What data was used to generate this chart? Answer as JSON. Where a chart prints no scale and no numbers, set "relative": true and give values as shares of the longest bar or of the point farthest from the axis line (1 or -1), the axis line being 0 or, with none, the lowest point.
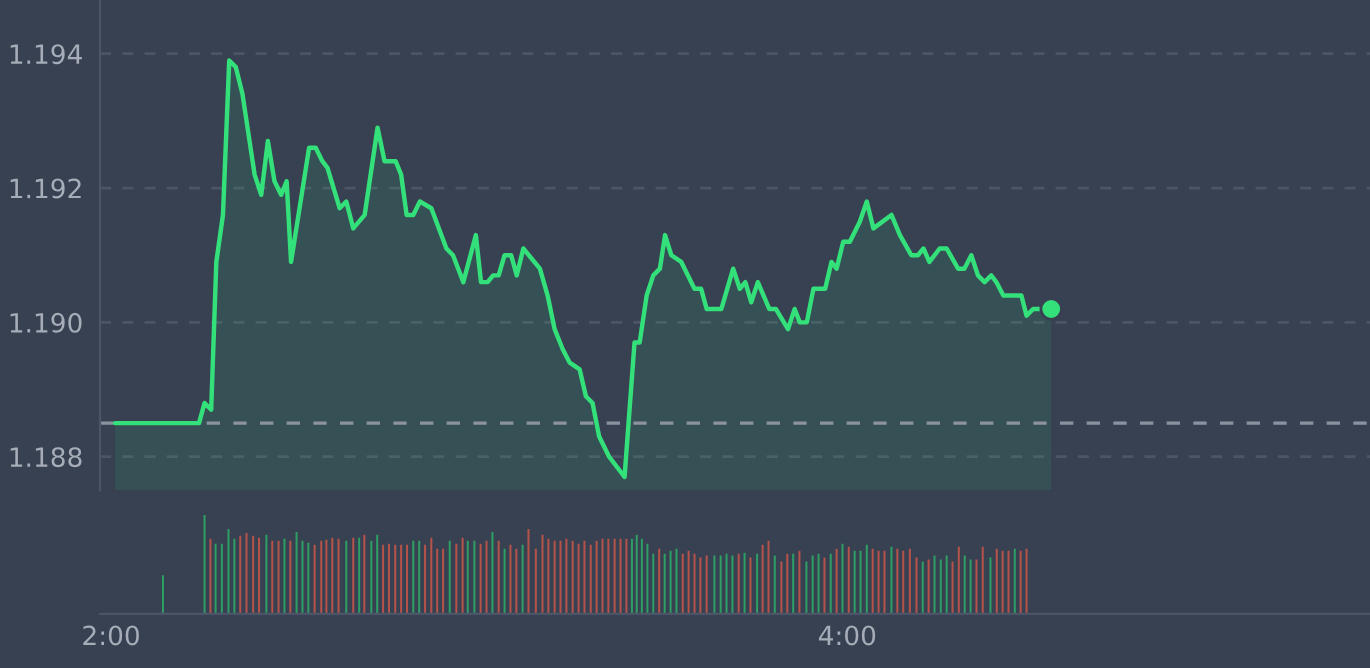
{
  "chart_data": [
    {
      "type": "area",
      "xlim": [
        1.97,
        5.42
      ],
      "ylim": [
        1.1875,
        1.1948
      ],
      "yticks": [
        1.188,
        {
          "value": 1.19,
          "label": "1.190"
        },
        1.192,
        1.194
      ],
      "tick_labels": "y",
      "grid": "y",
      "ref_lines": [
        {
          "axis": "y",
          "value": 1.1885,
          "color": "#8b93a1",
          "line_style": "dashed"
        }
      ],
      "series": [
        {
          "color": "#33e07a",
          "x": [
            2.011,
            2.239,
            2.254,
            2.272,
            2.286,
            2.304,
            2.321,
            2.339,
            2.357,
            2.39,
            2.408,
            2.426,
            2.444,
            2.462,
            2.477,
            2.489,
            2.538,
            2.556,
            2.574,
            2.588,
            2.621,
            2.639,
            2.658,
            2.689,
            2.724,
            2.743,
            2.773,
            2.788,
            2.803,
            2.821,
            2.839,
            2.87,
            2.911,
            2.929,
            2.957,
            2.991,
            3.005,
            3.023,
            3.038,
            3.053,
            3.069,
            3.087,
            3.102,
            3.12,
            3.165,
            3.186,
            3.205,
            3.227,
            3.246,
            3.273,
            3.29,
            3.308,
            3.326,
            3.353,
            3.395,
            3.422,
            3.436,
            3.455,
            3.473,
            3.491,
            3.505,
            3.522,
            3.549,
            3.585,
            3.603,
            3.618,
            3.64,
            3.658,
            3.69,
            3.708,
            3.723,
            3.739,
            3.757,
            3.788,
            3.806,
            3.839,
            3.857,
            3.871,
            3.89,
            3.908,
            3.926,
            3.94,
            3.957,
            3.971,
            3.989,
            4.007,
            4.034,
            4.053,
            4.071,
            4.12,
            4.143,
            4.174,
            4.192,
            4.207,
            4.223,
            4.251,
            4.27,
            4.301,
            4.318,
            4.337,
            4.355,
            4.373,
            4.391,
            4.405,
            4.424,
            4.442,
            4.46,
            4.473,
            4.487,
            4.505,
            4.554
          ],
          "values": [
            1.1885,
            1.1885,
            1.1888,
            1.1887,
            1.1909,
            1.1916,
            1.1939,
            1.1938,
            1.1934,
            1.1922,
            1.1919,
            1.1927,
            1.1921,
            1.1919,
            1.1921,
            1.1909,
            1.1926,
            1.1926,
            1.1924,
            1.1923,
            1.1917,
            1.1918,
            1.1914,
            1.1916,
            1.1929,
            1.1924,
            1.1924,
            1.1922,
            1.1916,
            1.1916,
            1.1918,
            1.1917,
            1.1911,
            1.191,
            1.1906,
            1.1913,
            1.1906,
            1.1906,
            1.1907,
            1.1907,
            1.191,
            1.191,
            1.1907,
            1.1911,
            1.1908,
            1.1904,
            1.1899,
            1.1896,
            1.1894,
            1.1893,
            1.1889,
            1.1888,
            1.1883,
            1.188,
            1.1877,
            1.1897,
            1.1897,
            1.1904,
            1.1907,
            1.1908,
            1.1913,
            1.191,
            1.1909,
            1.1905,
            1.1905,
            1.1902,
            1.1902,
            1.1902,
            1.1908,
            1.1905,
            1.1906,
            1.1903,
            1.1906,
            1.1902,
            1.1902,
            1.1899,
            1.1902,
            1.19,
            1.19,
            1.1905,
            1.1905,
            1.1905,
            1.1909,
            1.1908,
            1.1912,
            1.1912,
            1.1915,
            1.1918,
            1.1914,
            1.1916,
            1.1913,
            1.191,
            1.191,
            1.1911,
            1.1909,
            1.1911,
            1.1911,
            1.1908,
            1.1908,
            1.191,
            1.1907,
            1.1906,
            1.1907,
            1.1906,
            1.1904,
            1.1904,
            1.1904,
            1.1904,
            1.1901,
            1.1902,
            1.1902
          ]
        },
        {
          "type": "scatter",
          "color": "#33e07a",
          "marker": "circle",
          "x": [
            4.554
          ],
          "values": [
            1.1902
          ]
        }
      ]
    },
    {
      "type": "bar",
      "relative": true,
      "xlim": [
        1.97,
        5.42
      ],
      "xticks": [
        {
          "value": 2,
          "label": "2:00"
        },
        {
          "value": 4,
          "label": "4:00"
        }
      ],
      "tick_labels": "x",
      "x": [
        2.141,
        2.254,
        2.27,
        2.284,
        2.301,
        2.319,
        2.335,
        2.351,
        2.368,
        2.386,
        2.402,
        2.422,
        2.438,
        2.455,
        2.471,
        2.487,
        2.504,
        2.52,
        2.536,
        2.553,
        2.571,
        2.585,
        2.601,
        2.618,
        2.639,
        2.658,
        2.674,
        2.688,
        2.707,
        2.723,
        2.739,
        2.755,
        2.772,
        2.788,
        2.804,
        2.821,
        2.837,
        2.853,
        2.87,
        2.886,
        2.902,
        2.92,
        2.938,
        2.955,
        2.969,
        2.987,
        3.004,
        3.02,
        3.036,
        3.053,
        3.069,
        3.085,
        3.101,
        3.118,
        3.134,
        3.154,
        3.172,
        3.188,
        3.205,
        3.221,
        3.237,
        3.254,
        3.27,
        3.286,
        3.303,
        3.319,
        3.335,
        3.351,
        3.368,
        3.384,
        3.4,
        3.415,
        3.428,
        3.442,
        3.457,
        3.473,
        3.489,
        3.504,
        3.52,
        3.536,
        3.553,
        3.569,
        3.585,
        3.601,
        3.618,
        3.639,
        3.656,
        3.672,
        3.688,
        3.705,
        3.721,
        3.737,
        3.755,
        3.77,
        3.786,
        3.803,
        3.821,
        3.837,
        3.853,
        3.87,
        3.889,
        3.906,
        3.922,
        3.938,
        3.955,
        3.971,
        3.987,
        4.004,
        4.02,
        4.036,
        4.053,
        4.069,
        4.085,
        4.101,
        4.12,
        4.136,
        4.152,
        4.17,
        4.188,
        4.205,
        4.221,
        4.237,
        4.254,
        4.27,
        4.286,
        4.303,
        4.319,
        4.335,
        4.351,
        4.368,
        4.389,
        4.406,
        4.422,
        4.438,
        4.455,
        4.471,
        4.487
      ],
      "values": [
        0.39,
        1.0,
        0.76,
        0.71,
        0.71,
        0.86,
        0.76,
        0.79,
        0.82,
        0.79,
        0.77,
        0.8,
        0.74,
        0.74,
        0.76,
        0.74,
        0.83,
        0.74,
        0.72,
        0.7,
        0.74,
        0.75,
        0.77,
        0.76,
        0.74,
        0.77,
        0.77,
        0.8,
        0.74,
        0.8,
        0.7,
        0.71,
        0.7,
        0.7,
        0.7,
        0.74,
        0.74,
        0.7,
        0.77,
        0.66,
        0.66,
        0.74,
        0.71,
        0.77,
        0.74,
        0.74,
        0.71,
        0.74,
        0.83,
        0.74,
        0.66,
        0.7,
        0.66,
        0.7,
        0.86,
        0.66,
        0.8,
        0.76,
        0.74,
        0.74,
        0.76,
        0.74,
        0.71,
        0.74,
        0.7,
        0.74,
        0.76,
        0.76,
        0.76,
        0.76,
        0.76,
        0.76,
        0.8,
        0.76,
        0.71,
        0.61,
        0.66,
        0.61,
        0.64,
        0.66,
        0.61,
        0.64,
        0.61,
        0.57,
        0.59,
        0.59,
        0.59,
        0.61,
        0.59,
        0.61,
        0.62,
        0.57,
        0.61,
        0.7,
        0.74,
        0.59,
        0.53,
        0.61,
        0.61,
        0.64,
        0.53,
        0.59,
        0.61,
        0.57,
        0.61,
        0.66,
        0.71,
        0.68,
        0.64,
        0.64,
        0.7,
        0.66,
        0.64,
        0.64,
        0.68,
        0.66,
        0.64,
        0.66,
        0.57,
        0.53,
        0.55,
        0.59,
        0.55,
        0.59,
        0.53,
        0.68,
        0.59,
        0.55,
        0.55,
        0.68,
        0.57,
        0.66,
        0.64,
        0.64,
        0.66,
        0.64,
        0.66
      ],
      "colors": [
        "#2e9e64",
        "#2e9e64",
        "#b5534a",
        "#2e9e64",
        "#2e9e64",
        "#2e9e64",
        "#2e9e64",
        "#b5534a",
        "#b5534a",
        "#b5534a",
        "#b5534a",
        "#2e9e64",
        "#b5534a",
        "#b5534a",
        "#2e9e64",
        "#b5534a",
        "#2e9e64",
        "#2e9e64",
        "#2e9e64",
        "#b5534a",
        "#b5534a",
        "#b5534a",
        "#b5534a",
        "#b5534a",
        "#2e9e64",
        "#b5534a",
        "#2e9e64",
        "#b5534a",
        "#2e9e64",
        "#2e9e64",
        "#b5534a",
        "#b5534a",
        "#b5534a",
        "#b5534a",
        "#b5534a",
        "#2e9e64",
        "#2e9e64",
        "#b5534a",
        "#b5534a",
        "#b5534a",
        "#b5534a",
        "#2e9e64",
        "#b5534a",
        "#b5534a",
        "#2e9e64",
        "#2e9e64",
        "#b5534a",
        "#b5534a",
        "#2e9e64",
        "#b5534a",
        "#2e9e64",
        "#b5534a",
        "#b5534a",
        "#2e9e64",
        "#b5534a",
        "#b5534a",
        "#b5534a",
        "#b5534a",
        "#b5534a",
        "#b5534a",
        "#b5534a",
        "#b5534a",
        "#b5534a",
        "#b5534a",
        "#b5534a",
        "#b5534a",
        "#b5534a",
        "#b5534a",
        "#b5534a",
        "#b5534a",
        "#b5534a",
        "#2e9e64",
        "#2e9e64",
        "#2e9e64",
        "#2e9e64",
        "#2e9e64",
        "#b5534a",
        "#2e9e64",
        "#2e9e64",
        "#2e9e64",
        "#b5534a",
        "#b5534a",
        "#b5534a",
        "#b5534a",
        "#b5534a",
        "#2e9e64",
        "#2e9e64",
        "#2e9e64",
        "#2e9e64",
        "#b5534a",
        "#2e9e64",
        "#b5534a",
        "#2e9e64",
        "#b5534a",
        "#b5534a",
        "#2e9e64",
        "#b5534a",
        "#b5534a",
        "#2e9e64",
        "#b5534a",
        "#2e9e64",
        "#2e9e64",
        "#2e9e64",
        "#b5534a",
        "#2e9e64",
        "#b5534a",
        "#2e9e64",
        "#b5534a",
        "#2e9e64",
        "#2e9e64",
        "#2e9e64",
        "#b5534a",
        "#b5534a",
        "#b5534a",
        "#2e9e64",
        "#b5534a",
        "#b5534a",
        "#b5534a",
        "#b5534a",
        "#2e9e64",
        "#b5534a",
        "#2e9e64",
        "#2e9e64",
        "#2e9e64",
        "#b5534a",
        "#b5534a",
        "#2e9e64",
        "#2e9e64",
        "#b5534a",
        "#b5534a",
        "#2e9e64",
        "#b5534a",
        "#b5534a",
        "#b5534a",
        "#2e9e64",
        "#b5534a",
        "#b5534a"
      ]
    }
  ]
}
